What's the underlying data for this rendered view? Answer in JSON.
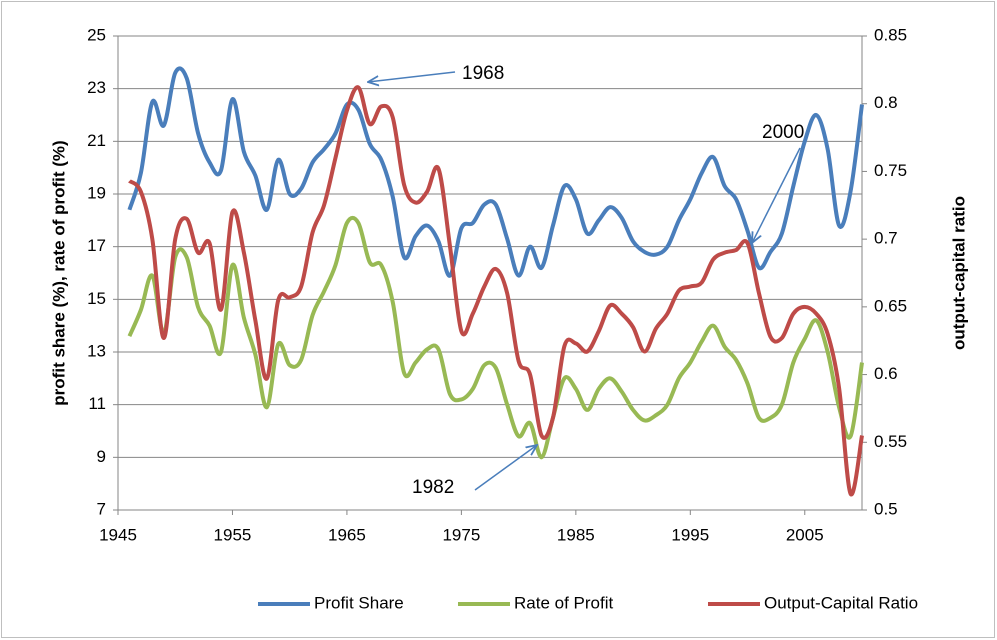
{
  "chart_data": {
    "type": "line",
    "y_label": "profit share (%), rate of profit (%)",
    "y2_label": "output-capital ratio",
    "x": [
      1946,
      1947,
      1948,
      1949,
      1950,
      1951,
      1952,
      1953,
      1954,
      1955,
      1956,
      1957,
      1958,
      1959,
      1960,
      1961,
      1962,
      1963,
      1964,
      1965,
      1966,
      1967,
      1968,
      1969,
      1970,
      1971,
      1972,
      1973,
      1974,
      1975,
      1976,
      1977,
      1978,
      1979,
      1980,
      1981,
      1982,
      1983,
      1984,
      1985,
      1986,
      1987,
      1988,
      1989,
      1990,
      1991,
      1992,
      1993,
      1994,
      1995,
      1996,
      1997,
      1998,
      1999,
      2000,
      2001,
      2002,
      2003,
      2004,
      2005,
      2006,
      2007,
      2008,
      2009,
      2010
    ],
    "series": [
      {
        "name": "Profit Share",
        "color": "#4a7ebb",
        "values": [
          18.4,
          19.8,
          22.5,
          21.6,
          23.6,
          23.4,
          21.3,
          20.2,
          19.9,
          22.6,
          20.6,
          19.7,
          18.4,
          20.3,
          19.0,
          19.2,
          20.2,
          20.7,
          21.3,
          22.4,
          22.2,
          20.9,
          20.3,
          18.9,
          16.6,
          17.4,
          17.8,
          17.2,
          15.9,
          17.7,
          17.9,
          18.6,
          18.6,
          17.3,
          15.9,
          17.0,
          16.2,
          17.8,
          19.3,
          18.8,
          17.5,
          18.0,
          18.5,
          18.1,
          17.2,
          16.8,
          16.7,
          17.0,
          18.0,
          18.8,
          19.8,
          20.4,
          19.3,
          18.8,
          17.6,
          16.2,
          16.8,
          17.5,
          19.3,
          21.0,
          22.0,
          20.7,
          17.8,
          19.1,
          22.4
        ]
      },
      {
        "name": "Rate of Profit",
        "color": "#98b954",
        "values": [
          13.6,
          14.6,
          15.9,
          13.7,
          16.6,
          16.6,
          14.7,
          14.0,
          13.0,
          16.3,
          14.3,
          12.9,
          10.9,
          13.3,
          12.5,
          12.7,
          14.4,
          15.3,
          16.3,
          17.9,
          17.9,
          16.4,
          16.3,
          14.9,
          12.2,
          12.6,
          13.1,
          13.1,
          11.4,
          11.2,
          11.6,
          12.5,
          12.4,
          11.0,
          9.8,
          10.3,
          9.0,
          10.5,
          12.0,
          11.6,
          10.8,
          11.6,
          12.0,
          11.5,
          10.8,
          10.4,
          10.6,
          11.0,
          12.0,
          12.6,
          13.4,
          14.0,
          13.2,
          12.7,
          11.8,
          10.5,
          10.5,
          11.0,
          12.6,
          13.5,
          14.2,
          13.0,
          10.9,
          9.8,
          12.6
        ]
      },
      {
        "name": "Output-Capital Ratio",
        "color": "#be4b48",
        "axis": "y2",
        "values": [
          0.743,
          0.735,
          0.7,
          0.627,
          0.7,
          0.715,
          0.69,
          0.697,
          0.648,
          0.72,
          0.69,
          0.64,
          0.597,
          0.655,
          0.657,
          0.665,
          0.705,
          0.725,
          0.76,
          0.795,
          0.812,
          0.785,
          0.798,
          0.79,
          0.74,
          0.727,
          0.735,
          0.752,
          0.695,
          0.632,
          0.645,
          0.665,
          0.678,
          0.66,
          0.61,
          0.6,
          0.555,
          0.568,
          0.621,
          0.623,
          0.617,
          0.632,
          0.651,
          0.645,
          0.635,
          0.617,
          0.634,
          0.645,
          0.662,
          0.665,
          0.668,
          0.685,
          0.69,
          0.692,
          0.697,
          0.66,
          0.628,
          0.627,
          0.645,
          0.65,
          0.645,
          0.63,
          0.59,
          0.512,
          0.555
        ]
      }
    ],
    "xlim": [
      1945,
      2010
    ],
    "xticks": [
      1945,
      1955,
      1965,
      1975,
      1985,
      1995,
      2005
    ],
    "ylim": [
      7,
      25
    ],
    "yticks": [
      7,
      9,
      11,
      13,
      15,
      17,
      19,
      21,
      23,
      25
    ],
    "y2lim": [
      0.5,
      0.85
    ],
    "y2ticks": [
      0.5,
      0.55,
      0.6,
      0.65,
      0.7,
      0.75,
      0.8,
      0.85
    ],
    "grid": true,
    "legend": "bottom",
    "annotations": [
      "1968",
      "2000",
      "1982"
    ]
  }
}
